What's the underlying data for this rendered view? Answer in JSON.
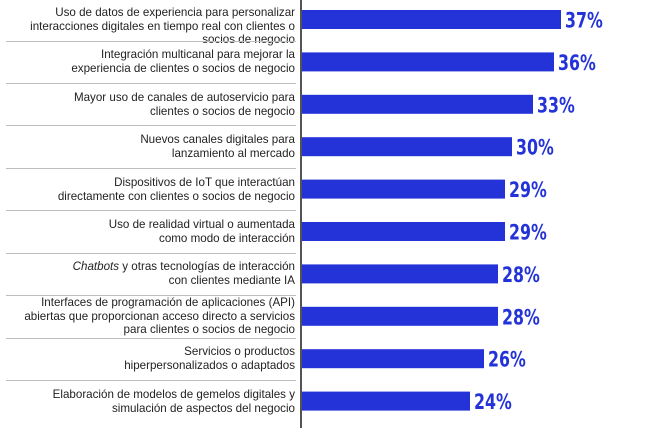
{
  "colors": {
    "bar": "#2433d8",
    "value_text": "#2433d8",
    "axis": "#1a1a1a",
    "separator": "#bdbdbd",
    "label_text": "#222222"
  },
  "chart_data": {
    "type": "bar",
    "orientation": "horizontal",
    "title": "",
    "xlabel": "",
    "ylabel": "",
    "xlim": [
      0,
      40
    ],
    "grid": false,
    "legend": "none",
    "categories": [
      "Uso de datos de experiencia para personalizar interacciones digitales en tiempo real con clientes o socios de negocio",
      "Integración multicanal para mejorar la experiencia de clientes o socios de negocio",
      "Mayor uso de canales de autoservicio para clientes o socios de negocio",
      "Nuevos canales digitales para lanzamiento al mercado",
      "Dispositivos de IoT que interactúan directamente con clientes o socios de negocio",
      "Uso de realidad virtual o aumentada como modo de interacción",
      "Chatbots y otras tecnologías de interacción con clientes mediante IA",
      "Interfaces de programación de aplicaciones (API) abiertas que proporcionan acceso directo a servicios para clientes o socios de negocio",
      "Servicios o productos hiperpersonalizados o adaptados",
      "Elaboración de modelos de gemelos digitales y simulación de aspectos del negocio"
    ],
    "values": [
      37,
      36,
      33,
      30,
      29,
      29,
      28,
      28,
      26,
      24
    ],
    "value_labels": [
      "37%",
      "36%",
      "33%",
      "30%",
      "29%",
      "29%",
      "28%",
      "28%",
      "26%",
      "24%"
    ]
  }
}
